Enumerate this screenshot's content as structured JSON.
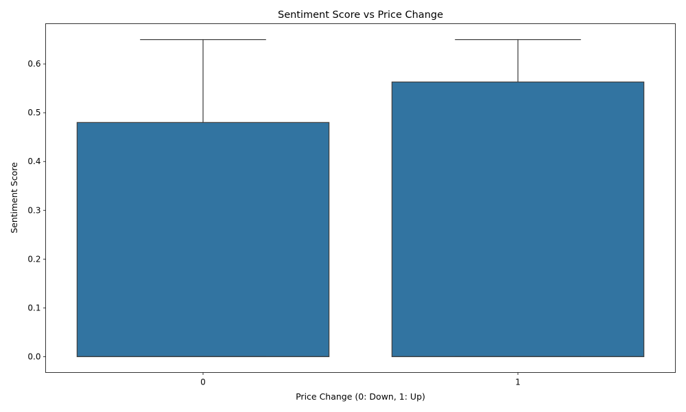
{
  "chart_data": {
    "type": "box",
    "title": "Sentiment Score vs Price Change",
    "xlabel": "Price Change (0: Down, 1: Up)",
    "ylabel": "Sentiment Score",
    "categories": [
      "0",
      "1"
    ],
    "ylim": [
      -0.0325,
      0.6825
    ],
    "yticks": [
      0.0,
      0.1,
      0.2,
      0.3,
      0.4,
      0.5,
      0.6
    ],
    "ytick_labels": [
      "0.0",
      "0.1",
      "0.2",
      "0.3",
      "0.4",
      "0.5",
      "0.6"
    ],
    "boxes": [
      {
        "category": "0",
        "whisker_low": 0.0,
        "q1": 0.0,
        "median": 0.0,
        "q3": 0.48,
        "whisker_high": 0.65
      },
      {
        "category": "1",
        "whisker_low": 0.0,
        "q1": 0.0,
        "median": 0.0,
        "q3": 0.563,
        "whisker_high": 0.65
      }
    ],
    "box_color": "#3274a1",
    "edge_color": "#3f3f3f",
    "grid": false,
    "legend": "none"
  }
}
